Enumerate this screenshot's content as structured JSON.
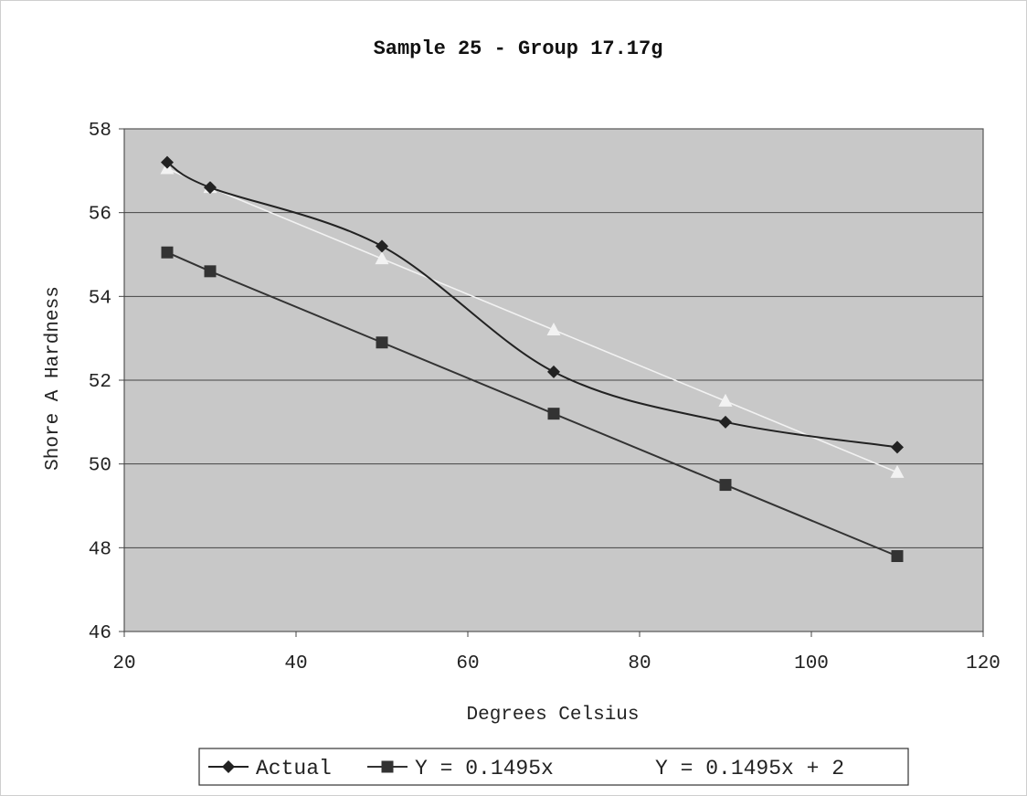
{
  "chart_data": {
    "type": "line",
    "title": "Sample 25 - Group 17.17g",
    "xlabel": "Degrees Celsius",
    "ylabel": "Shore A Hardness",
    "xlim": [
      20,
      120
    ],
    "ylim": [
      46,
      58
    ],
    "xticks": [
      20,
      40,
      60,
      80,
      100,
      120
    ],
    "yticks": [
      46,
      48,
      50,
      52,
      54,
      56,
      58
    ],
    "grid": "horizontal",
    "legend_position": "bottom",
    "plot_background": "#c8c8c8",
    "series": [
      {
        "name": "Actual",
        "color": "#222222",
        "marker": "diamond",
        "smooth": true,
        "x": [
          25,
          30,
          50,
          70,
          90,
          110
        ],
        "y": [
          57.2,
          56.6,
          55.2,
          52.2,
          51.0,
          50.4
        ]
      },
      {
        "name": "Y = 0.1495x",
        "color": "#333333",
        "marker": "square",
        "smooth": false,
        "x": [
          25,
          30,
          50,
          70,
          90,
          110
        ],
        "y": [
          55.05,
          54.6,
          52.9,
          51.2,
          49.5,
          47.8
        ]
      },
      {
        "name": "Y = 0.1495x + 2",
        "color": "#f2f2f2",
        "marker": "triangle",
        "smooth": false,
        "x": [
          25,
          30,
          50,
          70,
          90,
          110
        ],
        "y": [
          57.05,
          56.6,
          54.9,
          53.2,
          51.5,
          49.8
        ]
      }
    ]
  }
}
